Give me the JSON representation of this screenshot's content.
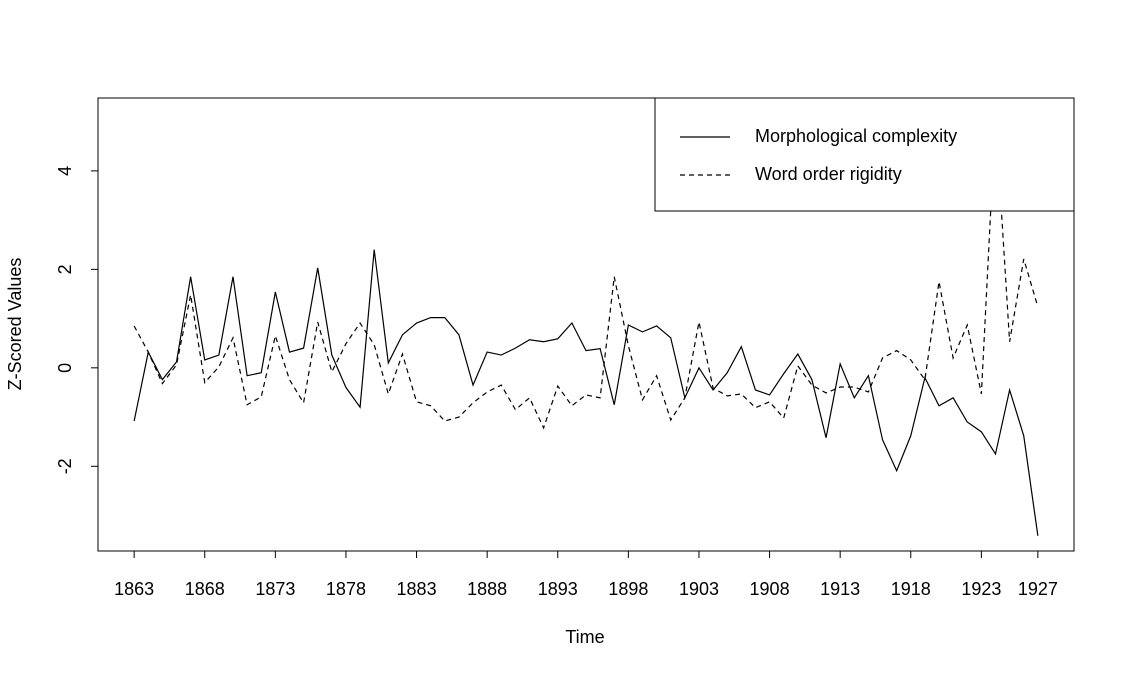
{
  "chart_data": {
    "type": "line",
    "xlabel": "Time",
    "ylabel": "Z-Scored Values",
    "x": [
      1863,
      1864,
      1865,
      1866,
      1867,
      1868,
      1869,
      1870,
      1871,
      1872,
      1873,
      1874,
      1875,
      1876,
      1877,
      1878,
      1879,
      1880,
      1881,
      1882,
      1883,
      1884,
      1885,
      1886,
      1887,
      1888,
      1889,
      1890,
      1891,
      1892,
      1893,
      1894,
      1895,
      1896,
      1897,
      1898,
      1899,
      1900,
      1901,
      1902,
      1903,
      1904,
      1905,
      1906,
      1907,
      1908,
      1909,
      1910,
      1911,
      1912,
      1913,
      1914,
      1915,
      1916,
      1917,
      1918,
      1919,
      1920,
      1921,
      1922,
      1923,
      1924,
      1925,
      1926,
      1927
    ],
    "series": [
      {
        "name": "Morphological complexity",
        "color": "#000000",
        "dash": "solid",
        "values": [
          -1.08,
          0.32,
          -0.24,
          0.12,
          1.85,
          0.16,
          0.26,
          1.85,
          -0.16,
          -0.1,
          1.54,
          0.32,
          0.4,
          2.03,
          0.26,
          -0.4,
          -0.8,
          2.4,
          0.1,
          0.67,
          0.91,
          1.02,
          1.02,
          0.67,
          -0.35,
          0.32,
          0.26,
          0.4,
          0.57,
          0.53,
          0.59,
          0.91,
          0.35,
          0.39,
          -0.75,
          0.87,
          0.73,
          0.85,
          0.61,
          -0.61,
          0,
          -0.45,
          -0.1,
          0.43,
          -0.45,
          -0.55,
          -0.12,
          0.28,
          -0.24,
          -1.42,
          0.08,
          -0.61,
          -0.16,
          -1.46,
          -2.09,
          -1.38,
          -0.2,
          -0.77,
          -0.61,
          -1.1,
          -1.3,
          -1.75,
          -0.45,
          -1.38,
          -3.41
        ]
      },
      {
        "name": "Word order rigidity",
        "color": "#000000",
        "dash": "dashed",
        "values": [
          0.85,
          0.32,
          -0.32,
          0.06,
          1.48,
          -0.3,
          0.02,
          0.61,
          -0.75,
          -0.59,
          0.65,
          -0.24,
          -0.71,
          0.93,
          -0.08,
          0.49,
          0.91,
          0.47,
          -0.53,
          0.28,
          -0.69,
          -0.77,
          -1.08,
          -1.0,
          -0.71,
          -0.49,
          -0.35,
          -0.85,
          -0.61,
          -1.22,
          -0.37,
          -0.77,
          -0.55,
          -0.61,
          1.85,
          0.45,
          -0.65,
          -0.16,
          -1.06,
          -0.61,
          0.93,
          -0.41,
          -0.57,
          -0.53,
          -0.81,
          -0.69,
          -1.02,
          0.04,
          -0.35,
          -0.51,
          -0.39,
          -0.39,
          -0.49,
          0.2,
          0.35,
          0.16,
          -0.24,
          1.75,
          0.2,
          0.87,
          -0.53,
          5.1,
          0.53,
          2.21,
          1.24
        ]
      }
    ],
    "xlim": [
      1860.44,
      1929.56
    ],
    "ylim": [
      -3.72,
      5.48
    ],
    "xticks": [
      1863,
      1868,
      1873,
      1878,
      1883,
      1888,
      1893,
      1898,
      1903,
      1908,
      1913,
      1918,
      1923,
      1927
    ],
    "yticks": [
      -2,
      0,
      2,
      4
    ],
    "legend": "topright"
  }
}
